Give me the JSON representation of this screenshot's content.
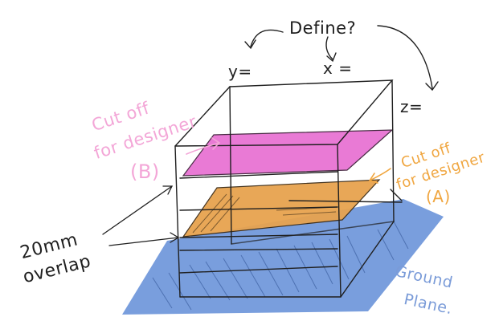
{
  "labels": {
    "define": "Define?",
    "y": "y=",
    "x": "x =",
    "z": "z=",
    "cut_off_b_line1": "Cut off",
    "cut_off_b_line2": "for designer",
    "cut_off_b_tag": "(B)",
    "cut_off_a_line1": "Cut off",
    "cut_off_a_line2": "for designer",
    "cut_off_a_tag": "(A)",
    "overlap_line1": "20mm",
    "overlap_line2": "overlap",
    "ground_line1": "Ground",
    "ground_line2": "Plane."
  },
  "colors": {
    "ink": "#1f1f1f",
    "pink_text": "#f3a6d7",
    "pink_fill": "#e86fd2",
    "orange_text": "#f0a640",
    "orange_fill": "#e7a34f",
    "blue_text": "#7a9bd8",
    "blue_fill": "#6a93d9"
  }
}
